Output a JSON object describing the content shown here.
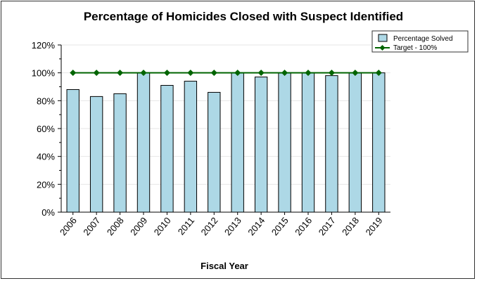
{
  "chart_data": {
    "type": "bar",
    "title": "Percentage of Homicides Closed with Suspect Identified",
    "xlabel": "Fiscal Year",
    "ylabel": "",
    "categories": [
      "2006",
      "2007",
      "2008",
      "2009",
      "2010",
      "2011",
      "2012",
      "2013",
      "2014",
      "2015",
      "2016",
      "2017",
      "2018",
      "2019"
    ],
    "series": [
      {
        "name": "Percentage Solved",
        "type": "bar",
        "color": "#add8e6",
        "values": [
          88,
          83,
          85,
          100,
          91,
          94,
          86,
          100,
          97,
          100,
          100,
          98,
          100,
          100
        ]
      },
      {
        "name": "Target - 100%",
        "type": "line",
        "color": "#006400",
        "marker": "diamond",
        "values": [
          100,
          100,
          100,
          100,
          100,
          100,
          100,
          100,
          100,
          100,
          100,
          100,
          100,
          100
        ]
      }
    ],
    "ylim": [
      0,
      120
    ],
    "yticks": [
      0,
      20,
      40,
      60,
      80,
      100,
      120
    ],
    "ytick_labels": [
      "0%",
      "20%",
      "40%",
      "60%",
      "80%",
      "100%",
      "120%"
    ],
    "grid": "horizontal",
    "legend_position": "top-right"
  }
}
